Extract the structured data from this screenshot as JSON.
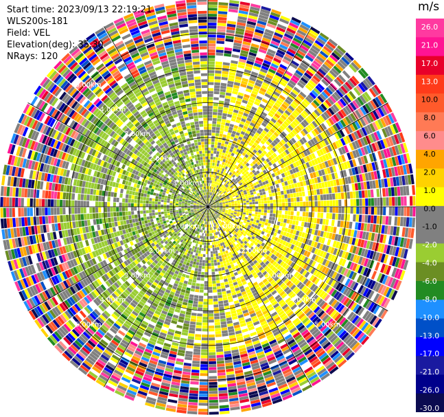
{
  "header": {
    "start_time": "Start time: 2023/09/13 22:19:21",
    "station": "WLS200s-181",
    "field": "Field: VEL",
    "elevation": "Elevation(deg): 35.30",
    "nrays": "NRays: 120"
  },
  "chart_data": {
    "type": "heatmap",
    "projection": "polar-ppi",
    "field": "VEL",
    "units": "m/s",
    "nrays": 120,
    "max_range_km": 6.0,
    "range_ring_labels": [
      {
        "text": "1.00km",
        "km": 1.0
      },
      {
        "text": "2.00km",
        "km": 2.0
      },
      {
        "text": "3.00km",
        "km": 3.0
      },
      {
        "text": "4.00km",
        "km": 4.0
      },
      {
        "text": "5.00km",
        "km": 5.0
      }
    ],
    "radial_lines_deg": [
      0,
      30,
      60,
      90,
      120,
      150,
      180,
      210,
      240,
      270,
      300,
      330
    ],
    "colorbar": {
      "unit_label": "m/s",
      "ticks": [
        "26.0",
        "21.0",
        "17.0",
        "13.0",
        "10.0",
        "8.0",
        "6.0",
        "4.0",
        "2.0",
        "1.0",
        "0.0",
        "-1.0",
        "-2.0",
        "-4.0",
        "-6.0",
        "-8.0",
        "-10.0",
        "-13.0",
        "-17.0",
        "-21.0",
        "-26.0",
        "-30.0"
      ],
      "colors": [
        "#ff3aa0",
        "#ff1493",
        "#e8002a",
        "#ff3b1a",
        "#ff5a2b",
        "#ff7a55",
        "#ff8c8c",
        "#ffa500",
        "#ffd200",
        "#ffff00",
        "#808080",
        "#808080",
        "#9acd32",
        "#6b8e23",
        "#228b22",
        "#1e90ff",
        "#0050c8",
        "#0000ff",
        "#1a1aa0",
        "#00008b",
        "#0b0b50"
      ]
    }
  }
}
